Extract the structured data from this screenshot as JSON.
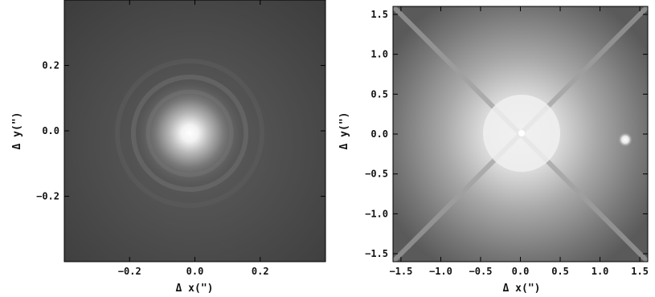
{
  "panels": [
    {
      "xlabel": "Δ x(\")",
      "ylabel": "Δ y(\")",
      "xticks": [
        -0.2,
        0.0,
        0.2
      ],
      "yticks": [
        -0.2,
        0.0,
        0.2
      ],
      "xtick_labels": [
        "−0.2",
        "0.0",
        "0.2"
      ],
      "ytick_labels": [
        "−0.2",
        "0.0",
        "0.2"
      ],
      "xlim": [
        -0.4,
        0.4
      ],
      "ylim": [
        -0.4,
        0.4
      ]
    },
    {
      "xlabel": "Δ x(\")",
      "ylabel": "Δ y(\")",
      "xticks": [
        -1.5,
        -1.0,
        -0.5,
        0.0,
        0.5,
        1.0,
        1.5
      ],
      "yticks": [
        -1.5,
        -1.0,
        -0.5,
        0.0,
        0.5,
        1.0,
        1.5
      ],
      "xtick_labels": [
        "−1.5",
        "−1.0",
        "−0.5",
        "0.0",
        "0.5",
        "1.0",
        "1.5"
      ],
      "ytick_labels": [
        "−1.5",
        "−1.0",
        "−0.5",
        "0.0",
        "0.5",
        "1.0",
        "1.5"
      ],
      "xlim": [
        -1.6,
        1.6
      ],
      "ylim": [
        -1.6,
        1.6
      ]
    }
  ]
}
